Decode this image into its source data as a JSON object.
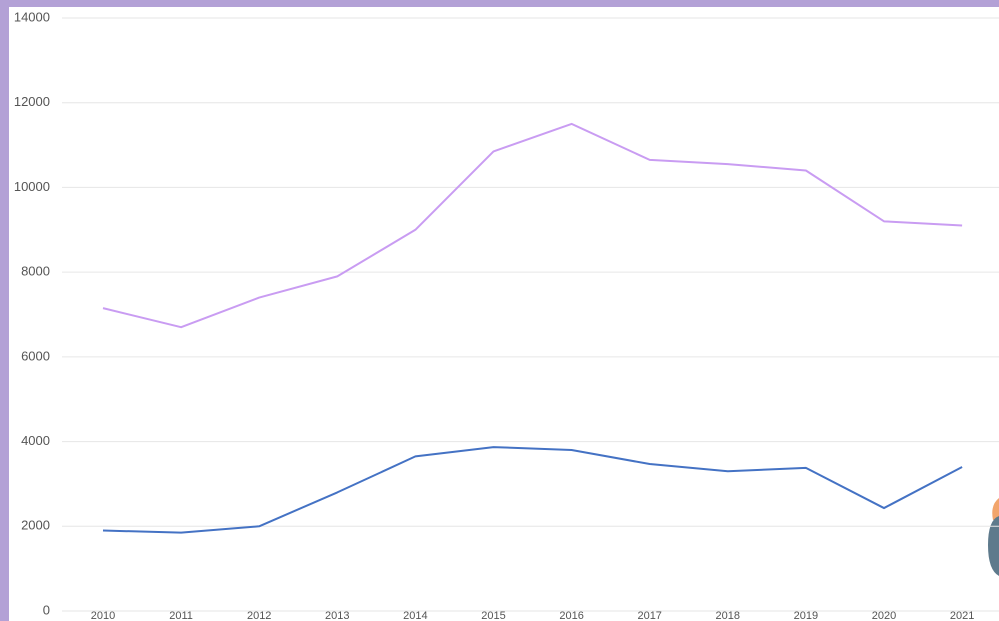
{
  "chart_data": {
    "type": "line",
    "categories": [
      "2010",
      "2011",
      "2012",
      "2013",
      "2014",
      "2015",
      "2016",
      "2017",
      "2018",
      "2019",
      "2020",
      "2021"
    ],
    "series": [
      {
        "color": "#c99cf2",
        "values": [
          7150,
          6700,
          7400,
          7900,
          9000,
          10850,
          11500,
          10650,
          10550,
          10400,
          9200,
          9100
        ]
      },
      {
        "color": "#4472c4",
        "values": [
          1900,
          1850,
          2000,
          2800,
          3650,
          3870,
          3800,
          3470,
          3300,
          3380,
          2430,
          3400
        ]
      }
    ],
    "ylim": [
      0,
      14000
    ],
    "yticks": [
      0,
      2000,
      4000,
      6000,
      8000,
      10000,
      12000,
      14000
    ],
    "grid": true
  }
}
